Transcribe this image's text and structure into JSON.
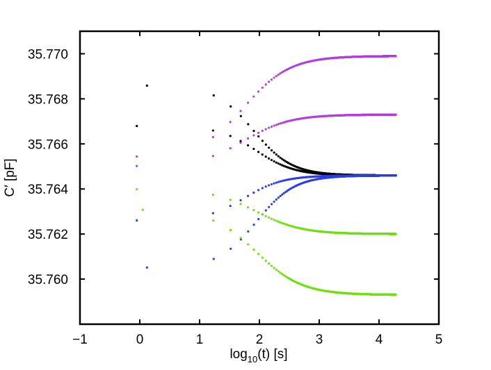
{
  "chart_data": {
    "type": "scatter",
    "title": "",
    "xlabel": {
      "base": "log",
      "sub": "10",
      "rest": "(t) [s]"
    },
    "ylabel": "C′ [pF]",
    "xlim": [
      -1,
      5
    ],
    "ylim": [
      35.758,
      35.771
    ],
    "x_ticks": [
      -1,
      0,
      1,
      2,
      3,
      4,
      5
    ],
    "x_tick_labels": [
      "−1",
      "0",
      "1",
      "2",
      "3",
      "4",
      "5"
    ],
    "y_ticks": [
      35.76,
      35.762,
      35.764,
      35.766,
      35.768,
      35.77
    ],
    "y_tick_labels": [
      "35.760",
      "35.762",
      "35.764",
      "35.766",
      "35.768",
      "35.770"
    ],
    "grid": false,
    "legend": "none",
    "series": [
      {
        "name": "magenta-upper",
        "color": "#b23fe0",
        "x0": -0.05,
        "x1": 4.28,
        "start": 35.7654,
        "end": 35.7699,
        "mid": 1.75,
        "width": 0.38
      },
      {
        "name": "magenta-lower",
        "color": "#b23fe0",
        "x0": -0.05,
        "x1": 4.28,
        "start": 35.765,
        "end": 35.7673,
        "mid": 1.75,
        "width": 0.38
      },
      {
        "name": "black-upper",
        "color": "#000000",
        "x0": 0.12,
        "x1": 4.28,
        "start": 35.7686,
        "end": 35.7646,
        "mid": 1.9,
        "width": 0.32
      },
      {
        "name": "black-lower",
        "color": "#000000",
        "x0": -0.05,
        "x1": 4.28,
        "start": 35.7668,
        "end": 35.7646,
        "mid": 1.95,
        "width": 0.32
      },
      {
        "name": "blue-upper",
        "color": "#2a3ee8",
        "x0": -0.05,
        "x1": 4.28,
        "start": 35.7626,
        "end": 35.7646,
        "mid": 1.75,
        "width": 0.32
      },
      {
        "name": "blue-lower",
        "color": "#2a3ee8",
        "x0": 0.12,
        "x1": 4.28,
        "start": 35.7605,
        "end": 35.7646,
        "mid": 1.95,
        "width": 0.32
      },
      {
        "name": "green-upper",
        "color": "#6fe010",
        "x0": -0.05,
        "x1": 4.28,
        "start": 35.764,
        "end": 35.762,
        "mid": 1.95,
        "width": 0.38
      },
      {
        "name": "green-lower",
        "color": "#6fe010",
        "x0": 0.05,
        "x1": 4.28,
        "start": 35.7631,
        "end": 35.7593,
        "mid": 1.95,
        "width": 0.38
      }
    ]
  }
}
